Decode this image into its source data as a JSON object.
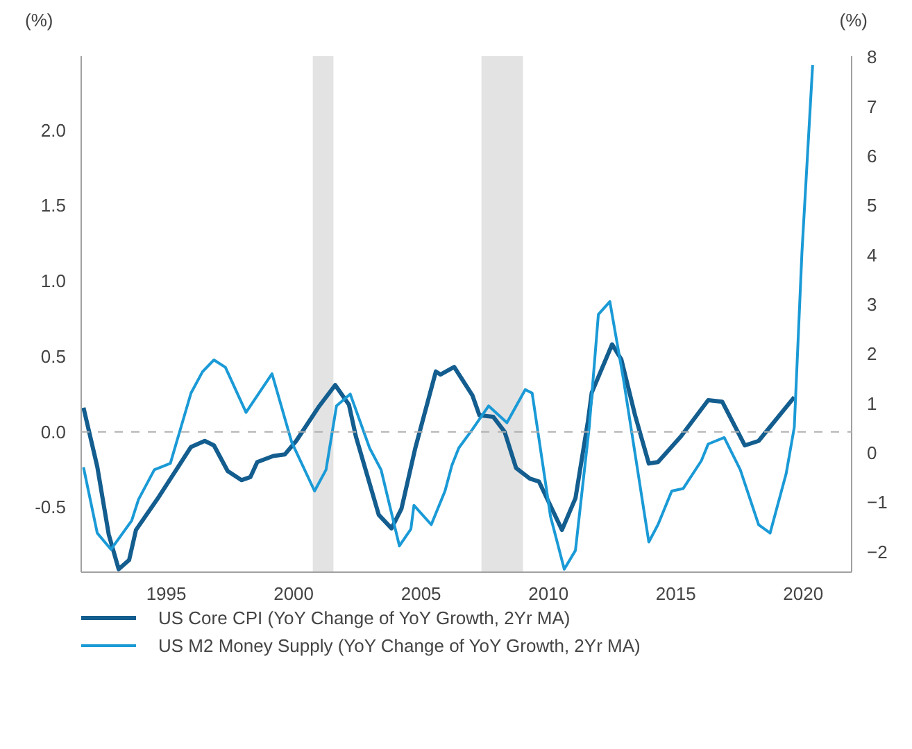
{
  "chart_data": {
    "type": "line",
    "ylabel": "(%)",
    "y2label": "(%)",
    "xlim": [
      1991.66,
      2021.9
    ],
    "xticks": [
      1995,
      2000,
      2005,
      2010,
      2015,
      2020
    ],
    "ylim": [
      -0.93,
      2.49
    ],
    "yticks": [
      {
        "value": -0.5,
        "label": "-0.5"
      },
      {
        "value": 0,
        "label": "0.0"
      },
      0.5,
      {
        "value": 1,
        "label": "1.0"
      },
      1.5,
      {
        "value": 2,
        "label": "2.0"
      }
    ],
    "y2lim": [
      -2.41,
      8.02
    ],
    "y2ticks": [
      -2,
      -1,
      0,
      1,
      2,
      3,
      4,
      5,
      6,
      7,
      8
    ],
    "grid": false,
    "legend": "bottom",
    "line_style": "solid",
    "marker": "none",
    "ref_lines": [
      {
        "axis": "y",
        "value": 0,
        "color": "#b0b0b0",
        "line_style": "dashed"
      }
    ],
    "bands": [
      {
        "axis": "x",
        "from": 2000.75,
        "to": 2001.56,
        "color": "#e3e3e3"
      },
      {
        "axis": "x",
        "from": 2007.37,
        "to": 2009.0,
        "color": "#e3e3e3"
      }
    ],
    "series": [
      {
        "name": "US Core CPI (YoY Change of YoY Growth, 2Yr MA)",
        "color": "#135d8f",
        "axis": "y",
        "x": [
          1991.75,
          1992.29,
          1992.74,
          1993.13,
          1993.54,
          1993.81,
          1994.71,
          1995.97,
          1996.51,
          1996.87,
          1997.41,
          1997.95,
          1998.3,
          1998.57,
          1999.2,
          1999.65,
          2000.1,
          2001.0,
          2001.63,
          2002.17,
          2002.44,
          2003.34,
          2003.84,
          2004.23,
          2004.77,
          2005.58,
          2005.76,
          2006.3,
          2007.02,
          2007.29,
          2007.83,
          2008.28,
          2008.73,
          2009.27,
          2009.63,
          2010.53,
          2011.06,
          2011.55,
          2011.7,
          2012.5,
          2012.86,
          2013.4,
          2013.94,
          2014.3,
          2015.2,
          2016.27,
          2016.82,
          2017.71,
          2018.25,
          2019.65
        ],
        "values": [
          0.16,
          -0.23,
          -0.68,
          -0.91,
          -0.85,
          -0.65,
          -0.43,
          -0.1,
          -0.06,
          -0.09,
          -0.26,
          -0.32,
          -0.3,
          -0.2,
          -0.16,
          -0.15,
          -0.06,
          0.17,
          0.31,
          0.18,
          -0.03,
          -0.55,
          -0.64,
          -0.51,
          -0.11,
          0.4,
          0.38,
          0.43,
          0.24,
          0.11,
          0.1,
          0.0,
          -0.24,
          -0.31,
          -0.33,
          -0.65,
          -0.44,
          0.07,
          0.26,
          0.58,
          0.48,
          0.11,
          -0.21,
          -0.2,
          -0.03,
          0.21,
          0.2,
          -0.09,
          -0.06,
          0.23
        ]
      },
      {
        "name": "US M2 Money Supply (YoY Change of YoY Growth, 2Yr MA)",
        "color": "#1a9ad6",
        "axis": "y2",
        "x": [
          1991.75,
          1992.29,
          1992.83,
          1993.64,
          1993.91,
          1994.53,
          1995.16,
          1995.97,
          1996.42,
          1996.87,
          1997.32,
          1998.13,
          1999.15,
          1999.92,
          2000.82,
          2001.27,
          2001.68,
          2002.22,
          2002.98,
          2003.43,
          2004.15,
          2004.6,
          2004.72,
          2005.4,
          2005.94,
          2006.21,
          2006.48,
          2007.02,
          2007.65,
          2008.37,
          2009.09,
          2009.36,
          2010.08,
          2010.62,
          2011.06,
          2011.6,
          2011.96,
          2012.41,
          2012.95,
          2013.94,
          2014.3,
          2014.84,
          2015.29,
          2016.0,
          2016.27,
          2016.9,
          2017.53,
          2018.25,
          2018.7,
          2019.33,
          2019.65,
          2019.95,
          2020.37
        ],
        "values": [
          -0.29,
          -1.62,
          -1.95,
          -1.37,
          -0.94,
          -0.34,
          -0.21,
          1.21,
          1.64,
          1.88,
          1.73,
          0.82,
          1.6,
          0.22,
          -0.77,
          -0.34,
          0.95,
          1.19,
          0.1,
          -0.34,
          -1.88,
          -1.54,
          -1.06,
          -1.45,
          -0.77,
          -0.25,
          0.1,
          0.48,
          0.95,
          0.61,
          1.28,
          1.21,
          -1.28,
          -2.35,
          -1.97,
          0.52,
          2.8,
          3.06,
          1.47,
          -1.8,
          -1.45,
          -0.77,
          -0.72,
          -0.16,
          0.18,
          0.31,
          -0.34,
          -1.45,
          -1.62,
          -0.42,
          0.52,
          4.05,
          7.84
        ]
      }
    ]
  }
}
